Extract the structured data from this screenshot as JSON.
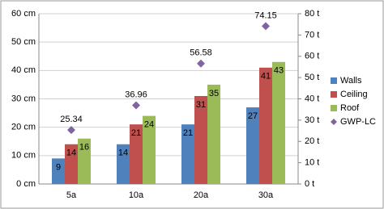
{
  "chart_data": {
    "type": "bar",
    "categories": [
      "5a",
      "10a",
      "20a",
      "30a"
    ],
    "series": [
      {
        "name": "Walls",
        "color": "#4f81bd",
        "values": [
          9,
          14,
          21,
          27
        ]
      },
      {
        "name": "Ceiling",
        "color": "#c0504d",
        "values": [
          14,
          21,
          31,
          41
        ]
      },
      {
        "name": "Roof",
        "color": "#9bbb59",
        "values": [
          16,
          24,
          35,
          43
        ]
      },
      {
        "name": "GWP-LC",
        "color": "#8064a2",
        "type": "scatter",
        "axis": "y2",
        "values": [
          25.34,
          36.96,
          56.58,
          74.15
        ]
      }
    ],
    "ylim": [
      0,
      60
    ],
    "yticks": [
      {
        "value": 0,
        "label": "0 cm"
      },
      {
        "value": 10,
        "label": "10 cm"
      },
      {
        "value": 20,
        "label": "20 cm"
      },
      {
        "value": 30,
        "label": "30 cm"
      },
      {
        "value": 40,
        "label": "40 cm"
      },
      {
        "value": 50,
        "label": "50 cm"
      },
      {
        "value": 60,
        "label": "60 cm"
      }
    ],
    "y2lim": [
      0,
      80
    ],
    "y2ticks": [
      {
        "value": 0,
        "label": "0 t"
      },
      {
        "value": 10,
        "label": "10 t"
      },
      {
        "value": 20,
        "label": "20 t"
      },
      {
        "value": 30,
        "label": "30 t"
      },
      {
        "value": 40,
        "label": "40 t"
      },
      {
        "value": 50,
        "label": "50 t"
      },
      {
        "value": 60,
        "label": "60 t"
      },
      {
        "value": 70,
        "label": "70 t"
      },
      {
        "value": 80,
        "label": "80 t"
      }
    ],
    "grid": true,
    "legend": "right"
  }
}
